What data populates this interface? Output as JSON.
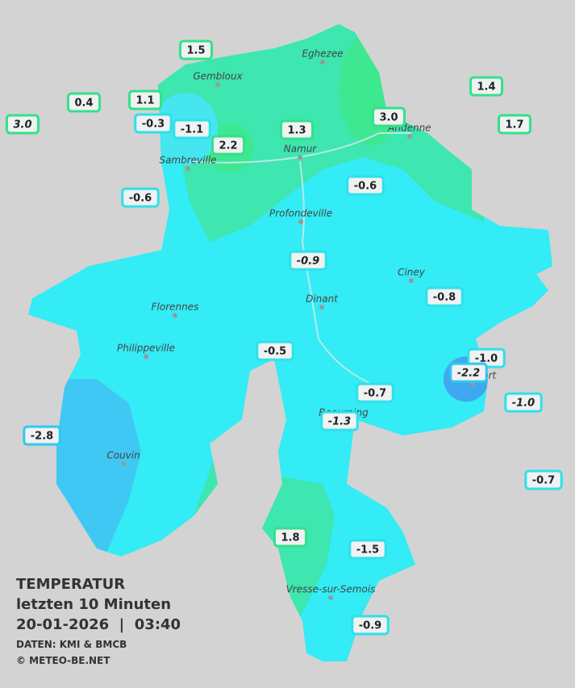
{
  "legend": {
    "title": "TEMPERATUR",
    "period": "letzten 10 Minuten",
    "timestamp": "20-01-2026  |  03:40",
    "source": "DATEN: KMI & BMCB",
    "copyright": "© METEO-BE.NET"
  },
  "cities": [
    "Eghezee",
    "Gembloux",
    "Andenne",
    "Namur",
    "Sambreville",
    "Profondeville",
    "Ciney",
    "Dinant",
    "Florennes",
    "Philippeville",
    "Beauraing",
    "Rochefort",
    "Couvin",
    "Vresse-sur-Semois"
  ],
  "stations": [
    {
      "label": "1.5",
      "italic": false,
      "color": "#35e08a"
    },
    {
      "label": "0.4",
      "italic": false,
      "color": "#35e08a"
    },
    {
      "label": "1.1",
      "italic": false,
      "color": "#35e08a"
    },
    {
      "label": "3.0",
      "italic": true,
      "color": "#35e08a"
    },
    {
      "label": "-0.3",
      "italic": false,
      "color": "#2fe0ea"
    },
    {
      "label": "-1.1",
      "italic": false,
      "color": "#2fe0ea"
    },
    {
      "label": "2.2",
      "italic": false,
      "color": "#35e08a"
    },
    {
      "label": "1.3",
      "italic": false,
      "color": "#35e08a"
    },
    {
      "label": "3.0",
      "italic": false,
      "color": "#35e08a"
    },
    {
      "label": "1.4",
      "italic": false,
      "color": "#35e08a"
    },
    {
      "label": "1.7",
      "italic": false,
      "color": "#35e08a"
    },
    {
      "label": "-0.6",
      "italic": false,
      "color": "#2fe0ea"
    },
    {
      "label": "-0.6",
      "italic": false,
      "color": "#2fe0ea"
    },
    {
      "label": "-0.9",
      "italic": true,
      "color": "#2fe0ea"
    },
    {
      "label": "-0.8",
      "italic": false,
      "color": "#2fe0ea"
    },
    {
      "label": "-0.5",
      "italic": false,
      "color": "#2fe0ea"
    },
    {
      "label": "-1.0",
      "italic": false,
      "color": "#2fe0ea"
    },
    {
      "label": "-2.2",
      "italic": true,
      "color": "#2fc8f0"
    },
    {
      "label": "-1.0",
      "italic": true,
      "color": "#2fe0ea"
    },
    {
      "label": "-0.7",
      "italic": false,
      "color": "#2fe0ea"
    },
    {
      "label": "-1.3",
      "italic": true,
      "color": "#2fe0ea"
    },
    {
      "label": "-2.8",
      "italic": false,
      "color": "#2fc8f0"
    },
    {
      "label": "-0.7",
      "italic": false,
      "color": "#2fe0ea"
    },
    {
      "label": "1.8",
      "italic": false,
      "color": "#35e08a"
    },
    {
      "label": "-1.5",
      "italic": false,
      "color": "#2fe0ea"
    },
    {
      "label": "-0.9",
      "italic": false,
      "color": "#2fe0ea"
    }
  ]
}
